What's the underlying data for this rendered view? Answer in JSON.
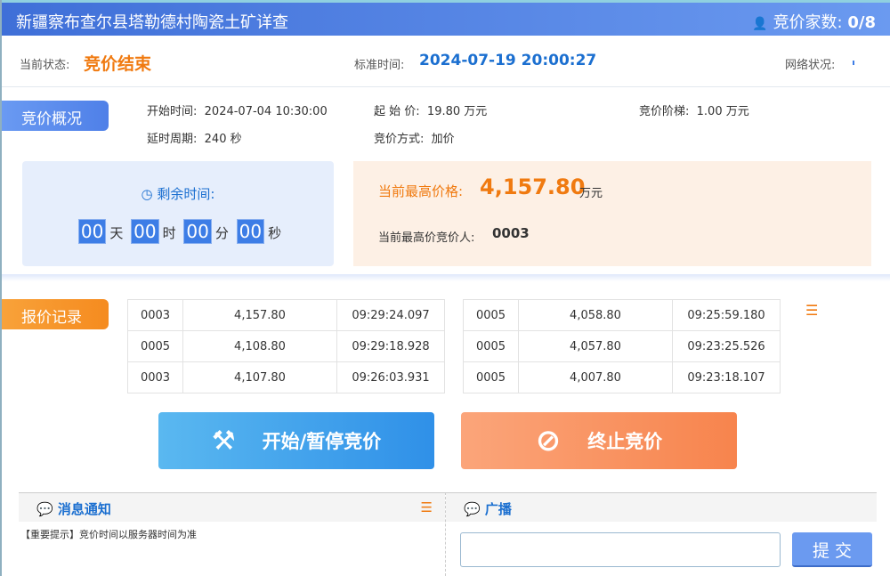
{
  "header": {
    "title": "新疆察布查尔县塔勒德村陶瓷土矿详查",
    "bidders_label": "竞价家数:",
    "bidders_value": "0/8"
  },
  "status": {
    "state_label": "当前状态:",
    "state_value": "竞价结束",
    "time_label": "标准时间:",
    "time_value": "2024-07-19 20:00:27",
    "network_label": "网络状况:"
  },
  "overview": {
    "tag": "竞价概况",
    "start_label": "开始时间:",
    "start_value": "2024-07-04 10:30:00",
    "start_price_label": "起 始 价:",
    "start_price_value": "19.80 万元",
    "step_label": "竞价阶梯:",
    "step_value": "1.00 万元",
    "delay_label": "延时周期:",
    "delay_value": "240 秒",
    "mode_label": "竞价方式:",
    "mode_value": "加价"
  },
  "countdown": {
    "label": "剩余时间:",
    "days": "00",
    "days_unit": "天",
    "hours": "00",
    "hours_unit": "时",
    "minutes": "00",
    "minutes_unit": "分",
    "seconds": "00",
    "seconds_unit": "秒"
  },
  "highest": {
    "price_label": "当前最高价格:",
    "price_value": "4,157.80",
    "price_unit": "万元",
    "bidder_label": "当前最高价竞价人:",
    "bidder_value": "0003"
  },
  "records": {
    "tag": "报价记录",
    "left": [
      [
        "0003",
        "4,157.80",
        "09:29:24.097"
      ],
      [
        "0005",
        "4,108.80",
        "09:29:18.928"
      ],
      [
        "0003",
        "4,107.80",
        "09:26:03.931"
      ]
    ],
    "right": [
      [
        "0005",
        "4,058.80",
        "09:25:59.180"
      ],
      [
        "0005",
        "4,057.80",
        "09:23:25.526"
      ],
      [
        "0005",
        "4,007.80",
        "09:23:18.107"
      ]
    ]
  },
  "buttons": {
    "start_pause": "开始/暂停竞价",
    "stop": "终止竞价",
    "submit": "提 交"
  },
  "messages": {
    "title": "消息通知",
    "items": [
      "【重要提示】竞价时间以服务器时间为准"
    ]
  },
  "broadcast": {
    "title": "广播",
    "input_value": ""
  },
  "colors": {
    "orange": "#f07a10",
    "blue": "#1b6fd0"
  }
}
